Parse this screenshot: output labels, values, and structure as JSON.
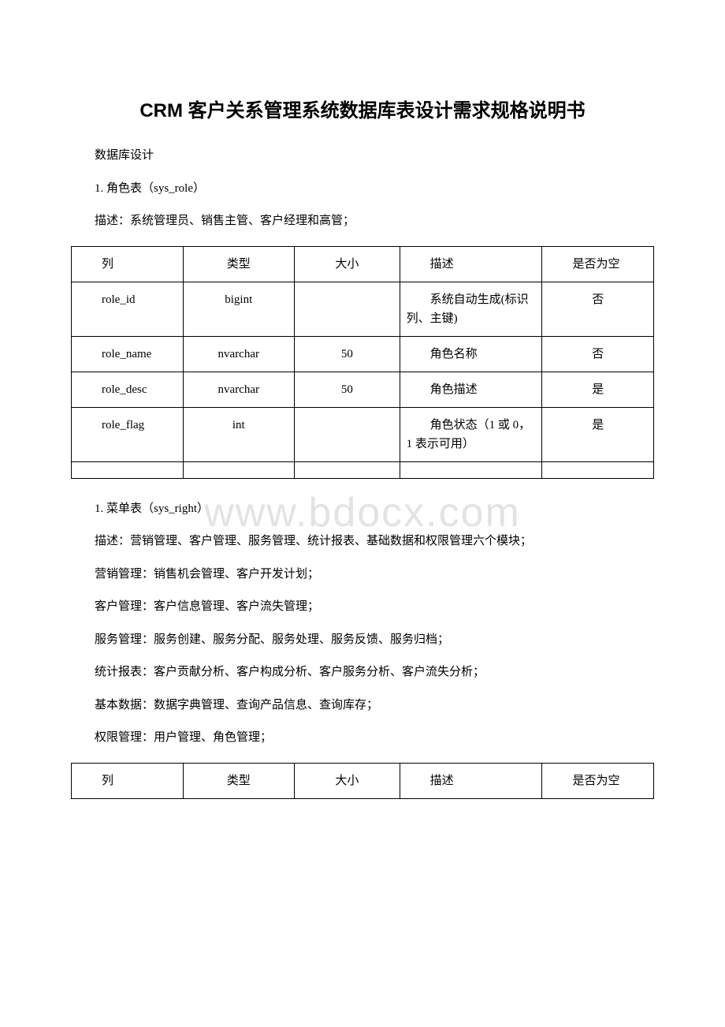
{
  "doc": {
    "title": "CRM 客户关系管理系统数据库表设计需求规格说明书",
    "watermark": "www.bdocx.com",
    "section1": {
      "heading": "数据库设计",
      "table_num": "1. 角色表（sys_role）",
      "table_desc": "描述：系统管理员、销售主管、客户经理和高管；"
    },
    "table1": {
      "headers": {
        "col": "列",
        "type": "类型",
        "size": "大小",
        "desc": "描述",
        "nullable": "是否为空"
      },
      "rows": [
        {
          "col": "role_id",
          "type": "bigint",
          "size": "",
          "desc": "系统自动生成(标识列、主键)",
          "nullable": "否"
        },
        {
          "col": "role_name",
          "type": "nvarchar",
          "size": "50",
          "desc": "角色名称",
          "nullable": "否"
        },
        {
          "col": "role_desc",
          "type": "nvarchar",
          "size": "50",
          "desc": "角色描述",
          "nullable": "是"
        },
        {
          "col": "role_flag",
          "type": "int",
          "size": "",
          "desc": "角色状态（1 或 0，1 表示可用）",
          "nullable": "是"
        },
        {
          "col": "",
          "type": "",
          "size": "",
          "desc": "",
          "nullable": ""
        }
      ]
    },
    "section2": {
      "table_num": "1. 菜单表（sys_right）",
      "lines": [
        "描述：营销管理、客户管理、服务管理、统计报表、基础数据和权限管理六个模块；",
        "营销管理：销售机会管理、客户开发计划；",
        "客户管理：客户信息管理、客户流失管理；",
        "服务管理：服务创建、服务分配、服务处理、服务反馈、服务归档；",
        "统计报表：客户贡献分析、客户构成分析、客户服务分析、客户流失分析；",
        "基本数据：数据字典管理、查询产品信息、查询库存；",
        "权限管理：用户管理、角色管理；"
      ]
    },
    "table2": {
      "headers": {
        "col": "列",
        "type": "类型",
        "size": "大小",
        "desc": "描述",
        "nullable": "是否为空"
      }
    }
  },
  "style": {
    "background_color": "#ffffff",
    "text_color": "#000000",
    "border_color": "#000000",
    "watermark_color": "rgba(200,200,200,0.5)",
    "title_fontsize": 24,
    "body_fontsize": 15
  }
}
